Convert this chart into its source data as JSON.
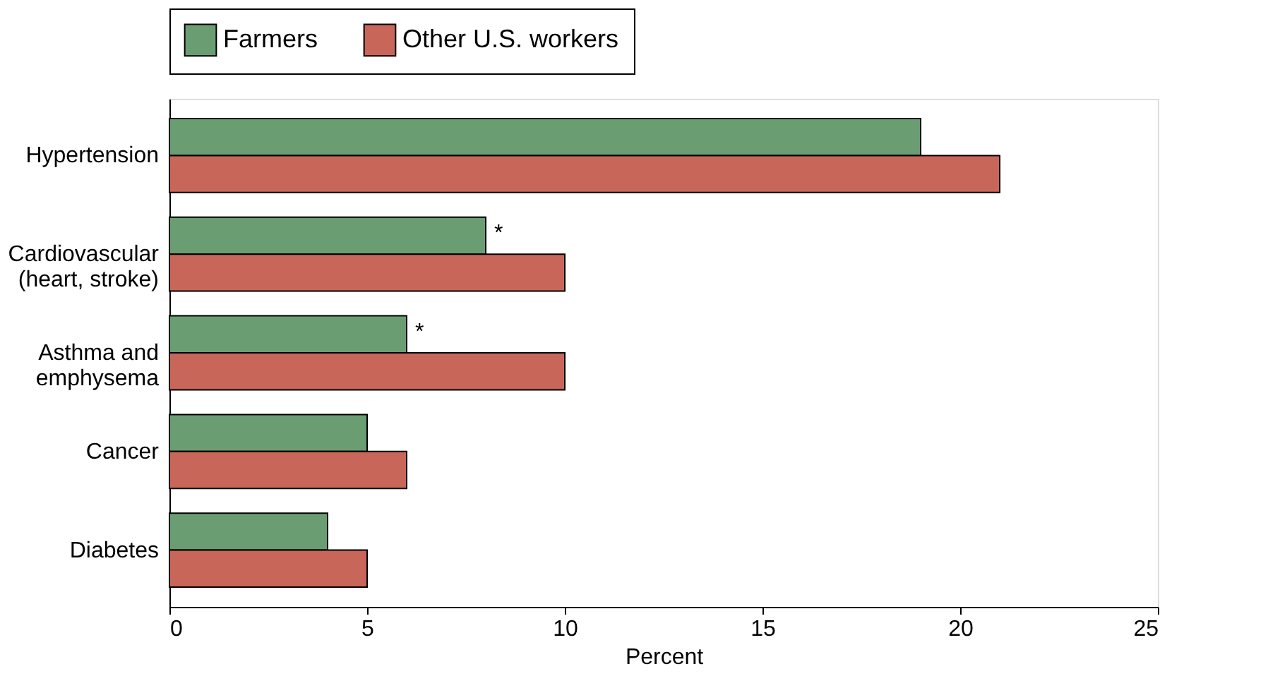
{
  "chart_data": {
    "type": "bar",
    "orientation": "horizontal",
    "xlabel": "Percent",
    "categories": [
      "Hypertension",
      "Cardiovascular\n(heart, stroke)",
      "Asthma and\nemphysema",
      "Cancer",
      "Diabetes"
    ],
    "series": [
      {
        "name": "Farmers",
        "color": "#6a9e72",
        "values": [
          19,
          8,
          6,
          5,
          4
        ]
      },
      {
        "name": "Other U.S. workers",
        "color": "#c8665a",
        "values": [
          21,
          10,
          10,
          6,
          5
        ]
      }
    ],
    "xlim": [
      0,
      25
    ],
    "xticks": [
      0,
      5,
      10,
      15,
      20,
      25
    ],
    "grid": false,
    "legend": "top",
    "annotations": [
      {
        "text": "*",
        "x": 8,
        "y": "Cardiovascular\n(heart, stroke)"
      },
      {
        "text": "*",
        "x": 6,
        "y": "Asthma and\nemphysema"
      }
    ]
  }
}
